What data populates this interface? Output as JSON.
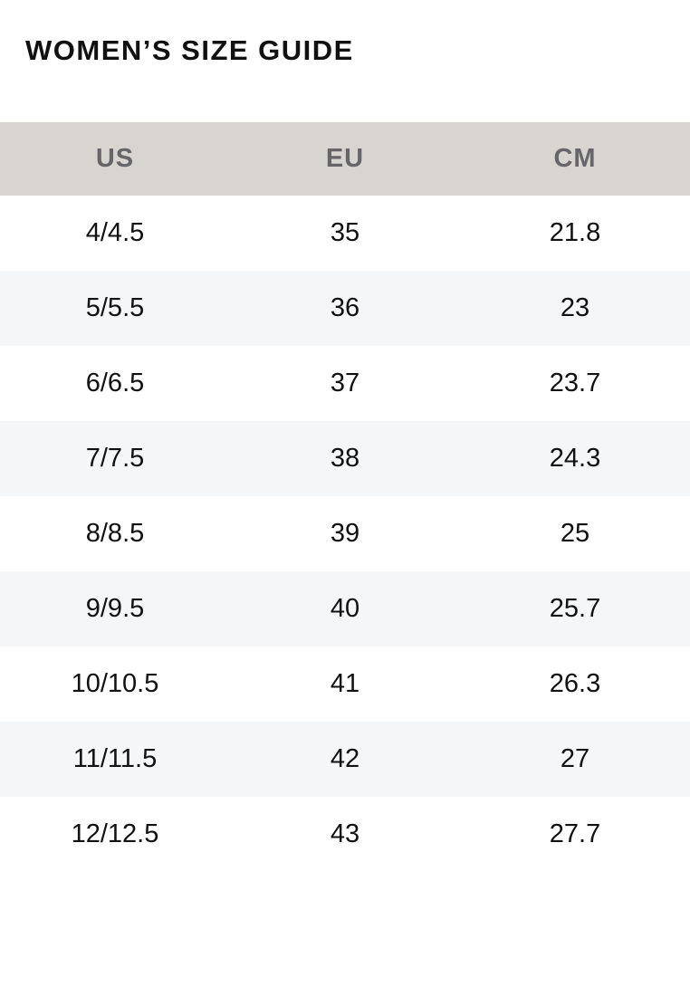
{
  "title": "WOMEN’S SIZE GUIDE",
  "colors": {
    "header_bg": "#d8d5d0",
    "header_text": "#666569",
    "alt_row_bg": "#f5f6f8"
  },
  "table": {
    "headers": [
      "US",
      "EU",
      "CM"
    ],
    "rows": [
      [
        "4/4.5",
        "35",
        "21.8"
      ],
      [
        "5/5.5",
        "36",
        "23"
      ],
      [
        "6/6.5",
        "37",
        "23.7"
      ],
      [
        "7/7.5",
        "38",
        "24.3"
      ],
      [
        "8/8.5",
        "39",
        "25"
      ],
      [
        "9/9.5",
        "40",
        "25.7"
      ],
      [
        "10/10.5",
        "41",
        "26.3"
      ],
      [
        "11/11.5",
        "42",
        "27"
      ],
      [
        "12/12.5",
        "43",
        "27.7"
      ]
    ]
  }
}
